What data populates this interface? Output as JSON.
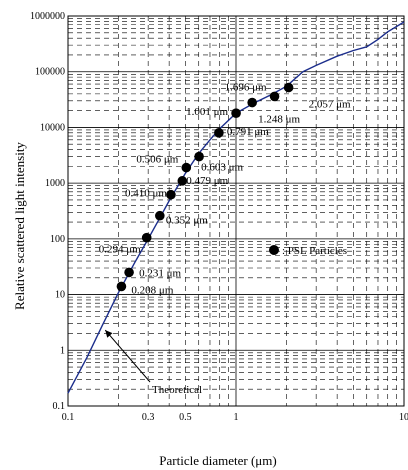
{
  "chart_data": {
    "type": "scatter",
    "title": "",
    "xlabel": "Particle diameter (μm)",
    "ylabel": "Relative scattered light intensity",
    "xscale": "log",
    "yscale": "log",
    "xlim": [
      0.1,
      10
    ],
    "ylim": [
      0.1,
      1000000
    ],
    "grid": true,
    "x_tick_labels": [
      {
        "value": 0.1,
        "label": "0.1"
      },
      {
        "value": 0.3,
        "label": "0.3"
      },
      {
        "value": 0.5,
        "label": "0.5"
      },
      {
        "value": 1,
        "label": "1"
      },
      {
        "value": 10,
        "label": "10"
      }
    ],
    "y_tick_labels": [
      {
        "value": 0.1,
        "label": "0.1"
      },
      {
        "value": 1,
        "label": "1"
      },
      {
        "value": 10,
        "label": "10"
      },
      {
        "value": 100,
        "label": "100"
      },
      {
        "value": 1000,
        "label": "1000"
      },
      {
        "value": 10000,
        "label": "10000"
      },
      {
        "value": 100000,
        "label": "100000"
      },
      {
        "value": 1000000,
        "label": "1000000"
      }
    ],
    "series": [
      {
        "name": "PSL Particles",
        "kind": "points",
        "color": "#000000",
        "points": [
          {
            "x": 0.208,
            "y": 14,
            "label": "0.208 μm"
          },
          {
            "x": 0.231,
            "y": 25,
            "label": "0.231 μm"
          },
          {
            "x": 0.294,
            "y": 105,
            "label": "0.294 μm"
          },
          {
            "x": 0.352,
            "y": 260,
            "label": "0.352 μm"
          },
          {
            "x": 0.41,
            "y": 620,
            "label": "0.410 μm"
          },
          {
            "x": 0.479,
            "y": 1100,
            "label": "0.479 μm"
          },
          {
            "x": 0.506,
            "y": 1900,
            "label": "0.506 μm"
          },
          {
            "x": 0.603,
            "y": 3000,
            "label": "0.603 μm"
          },
          {
            "x": 0.791,
            "y": 8000,
            "label": "0.791 μm"
          },
          {
            "x": 1.001,
            "y": 18000,
            "label": "1.001 μm"
          },
          {
            "x": 1.248,
            "y": 28000,
            "label": "1.248 μm"
          },
          {
            "x": 1.696,
            "y": 36000,
            "label": "1.696 μm"
          },
          {
            "x": 2.057,
            "y": 52000,
            "label": "2.057 μm"
          }
        ]
      },
      {
        "name": "Theoretical",
        "kind": "line",
        "color": "#1c2e8c",
        "x": [
          0.1,
          0.13,
          0.16,
          0.2,
          0.25,
          0.3,
          0.35,
          0.4,
          0.5,
          0.6,
          0.7,
          0.8,
          1.0,
          1.3,
          1.6,
          2.0,
          2.5,
          3.0,
          4.0,
          5.0,
          6.0,
          7.0,
          8.0,
          10.0
        ],
        "y": [
          0.17,
          0.75,
          2.8,
          11,
          38,
          100,
          230,
          480,
          1500,
          3400,
          6000,
          9500,
          18000,
          28000,
          38000,
          55000,
          100000,
          130000,
          190000,
          240000,
          280000,
          380000,
          520000,
          780000
        ]
      }
    ],
    "legend": [
      {
        "marker": "circle",
        "text": ": PSL Particles"
      }
    ],
    "annotations": [
      {
        "text": "Theoretical",
        "target_x": 0.16,
        "target_y": 2.5
      }
    ]
  }
}
